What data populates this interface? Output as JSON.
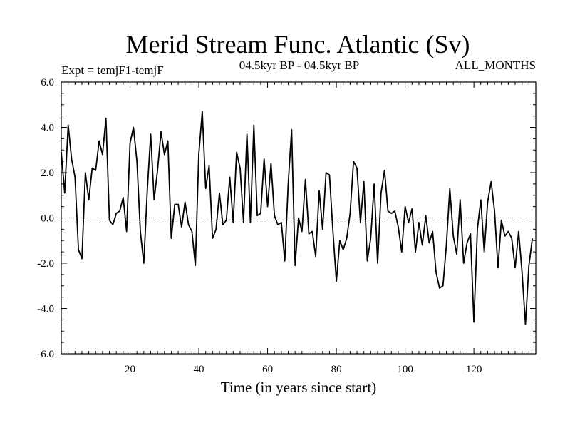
{
  "chart_data": {
    "type": "line",
    "title": "Merid Stream Func. Atlantic (Sv)",
    "subtitle_left": "Expt = temjF1-temjF",
    "subtitle_center": "04.5kyr BP - 04.5kyr BP",
    "subtitle_right": "ALL_MONTHS",
    "xlabel": "Time (in years since start)",
    "ylabel": "",
    "xlim": [
      0,
      138
    ],
    "ylim": [
      -6,
      6
    ],
    "xticks": [
      20,
      40,
      60,
      80,
      100,
      120
    ],
    "yticks": [
      -6,
      -4,
      -2,
      0,
      2,
      4,
      6
    ],
    "ytick_labels": [
      "-6.0",
      "-4.0",
      "-2.0",
      "0.0",
      "2.0",
      "4.0",
      "6.0"
    ],
    "zero_line": 0,
    "series": [
      {
        "name": "Expt = temjF1-temjF",
        "x_start": 0,
        "x_step": 1,
        "values": [
          2.9,
          1.1,
          4.1,
          2.6,
          1.8,
          -1.4,
          -1.8,
          2.0,
          0.8,
          2.2,
          2.1,
          3.4,
          2.8,
          4.4,
          -0.1,
          -0.3,
          0.2,
          0.3,
          0.9,
          -0.6,
          3.3,
          4.0,
          2.5,
          -0.6,
          -2.0,
          1.2,
          3.7,
          0.8,
          2.1,
          3.8,
          2.8,
          3.4,
          -0.9,
          0.6,
          0.6,
          -0.4,
          0.7,
          -0.3,
          -0.6,
          -2.1,
          2.8,
          4.7,
          1.3,
          2.3,
          -0.9,
          -0.5,
          1.1,
          -0.3,
          -0.1,
          1.8,
          -0.2,
          2.9,
          2.2,
          -0.2,
          3.7,
          -0.2,
          4.1,
          0.1,
          0.2,
          2.6,
          0.5,
          2.4,
          0.1,
          -0.3,
          -0.2,
          -1.9,
          1.5,
          3.9,
          -2.1,
          0.0,
          -0.6,
          1.7,
          -0.7,
          -0.6,
          -1.7,
          1.2,
          -0.5,
          2.0,
          1.9,
          -0.6,
          -2.8,
          -1.0,
          -1.4,
          -0.9,
          0.2,
          2.5,
          2.2,
          -0.2,
          1.6,
          -1.9,
          -0.9,
          1.5,
          -2.0,
          1.1,
          2.1,
          0.3,
          0.2,
          0.3,
          -0.4,
          -1.5,
          0.5,
          -0.2,
          0.4,
          -1.5,
          -0.2,
          -1.2,
          0.1,
          -1.1,
          -0.6,
          -2.4,
          -3.1,
          -3.0,
          -1.2,
          1.3,
          -0.8,
          -1.6,
          0.8,
          -2.0,
          -1.1,
          -0.7,
          -4.6,
          -0.5,
          0.8,
          -1.5,
          0.7,
          1.6,
          0.3,
          -2.2,
          -0.1,
          -0.8,
          -0.6,
          -0.9,
          -2.2,
          -0.6,
          -2.4,
          -4.7,
          -2.1,
          -0.9
        ]
      }
    ]
  }
}
